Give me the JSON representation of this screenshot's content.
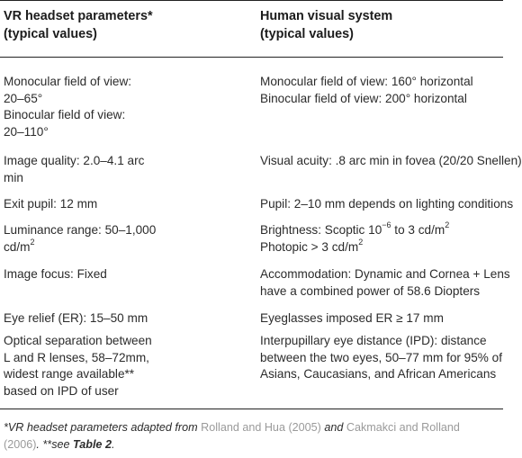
{
  "header": {
    "col1_line1": "VR headset parameters*",
    "col1_line2": "(typical values)",
    "col2_line1": "Human visual system",
    "col2_line2": "(typical values)"
  },
  "rows": [
    {
      "c1": [
        "Monocular field of view:",
        "20–65°",
        "Binocular field of view:",
        "20–110°"
      ],
      "c2": [
        "Monocular field of view: 160° horizontal",
        "Binocular field of view: 200° horizontal"
      ]
    },
    {
      "c1": [
        "Image quality: 2.0–4.1 arc",
        "min"
      ],
      "c2": [
        "Visual acuity: .8 arc min in fovea (20/20 Snellen)"
      ]
    },
    {
      "c1": [
        "Exit pupil: 12 mm"
      ],
      "c2": [
        "Pupil: 2–10 mm depends on lighting conditions"
      ]
    },
    {
      "c1_a": "Luminance range: 50–1,000",
      "c1_b": "cd/m",
      "c1_b_sup": "2",
      "c2_a_pre": "Brightness: Scoptic 10",
      "c2_a_sup": "−6",
      "c2_a_mid": " to 3 cd/m",
      "c2_a_sup2": "2",
      "c2_b_pre": "Photopic > 3 cd/m",
      "c2_b_sup": "2"
    },
    {
      "c1": [
        "Image focus: Fixed"
      ],
      "c2": [
        "Accommodation: Dynamic and Cornea + Lens",
        "have a combined power of 58.6 Diopters"
      ]
    },
    {
      "c1": [
        "Eye relief (ER): 15–50 mm"
      ],
      "c2": [
        "Eyeglasses imposed ER ≥ 17 mm"
      ]
    },
    {
      "c1": [
        "Optical separation between",
        "L and R lenses, 58–72mm,",
        "widest range available**",
        "based on IPD of user"
      ],
      "c2": [
        "Interpupillary eye distance (IPD): distance",
        "between the two eyes, 50–77 mm for 95% of",
        "Asians, Caucasians, and African Americans"
      ]
    }
  ],
  "footnote": {
    "t1": "*VR headset parameters adapted from ",
    "r1": "Rolland and Hua (2005)",
    "t2": " and ",
    "r2": "Cakmakci and Rolland",
    "r3": "(2006)",
    "t3": ". **see ",
    "b1": "Table 2",
    "t4": "."
  }
}
